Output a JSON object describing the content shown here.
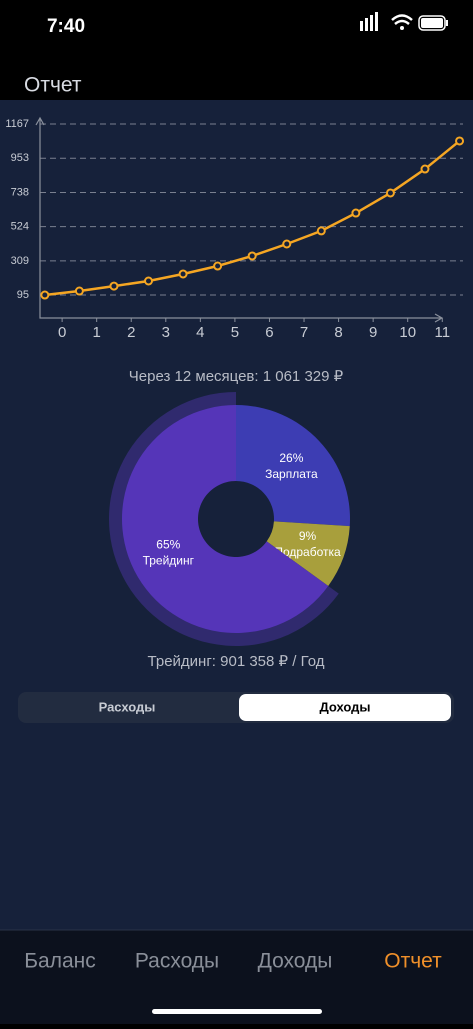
{
  "status_bar": {
    "time": "7:40"
  },
  "header": {
    "title": "Отчет"
  },
  "chart_data": [
    {
      "type": "line",
      "x": [
        -0.5,
        0.5,
        1.5,
        2.5,
        3.5,
        4.5,
        5.5,
        6.5,
        7.5,
        8.5,
        9.5,
        10.5,
        11.5
      ],
      "values": [
        95,
        120,
        151,
        183,
        227,
        277,
        340,
        415,
        497,
        609,
        735,
        885,
        1061
      ],
      "color": "#f5a623",
      "xlim": [
        -0.64,
        11.6
      ],
      "xticks": [
        0,
        1,
        2,
        3,
        4,
        5,
        6,
        7,
        8,
        9,
        10,
        11
      ],
      "ylim": [
        -49,
        1205
      ],
      "yticks": [
        95,
        309,
        524,
        738,
        953,
        1167
      ],
      "grid": true
    },
    {
      "type": "pie",
      "categories": [
        "Зарплата",
        "Подработка",
        "Трейдинг"
      ],
      "values": [
        26,
        9,
        65
      ],
      "value_labels": [
        "26%",
        "9%",
        "65%"
      ],
      "colors": [
        "#3d3db3",
        "#a89f3c",
        "#5535b8"
      ],
      "highlighted": 2
    }
  ],
  "forecast": "Через 12 месяцев: 1 061 329 ₽",
  "selected_summary": "Трейдинг: 901 358 ₽ / Год",
  "segments": {
    "options": [
      "Расходы",
      "Доходы"
    ],
    "selected": 1
  },
  "tab_bar": {
    "tabs": [
      "Баланс",
      "Расходы",
      "Доходы",
      "Отчет"
    ],
    "selected": 3
  }
}
